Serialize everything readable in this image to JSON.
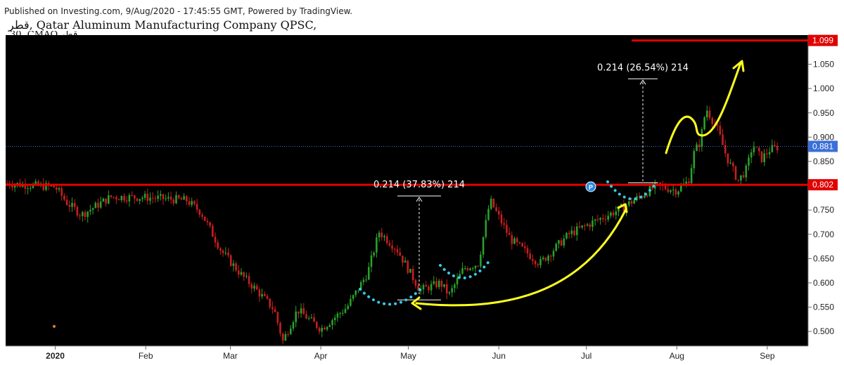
{
  "header": {
    "published": "Published on Investing.com, 9/Aug/2020 - 17:45:55 GMT, Powered by TradingView.",
    "title": "قطر, Qatar Aluminum Manufacturing Company QPSC,",
    "timeframe": "30, CMAQ قطر"
  },
  "colors": {
    "background": "#000000",
    "candle_up": "#2aa02a",
    "candle_down": "#c81e1e",
    "support_line": "#e00000",
    "current_price_line": "#3b6fd8",
    "arrow": "#ffff1e",
    "dots": "#38c8e0"
  },
  "chart_data": {
    "type": "candlestick",
    "x_tick_labels": [
      "2020",
      "Feb",
      "Mar",
      "Apr",
      "May",
      "Jun",
      "Jul",
      "Aug",
      "Sep"
    ],
    "y_tick_labels": [
      "0.500",
      "0.550",
      "0.600",
      "0.650",
      "0.700",
      "0.750",
      "0.800",
      "0.850",
      "0.900",
      "0.950",
      "1.000",
      "1.050"
    ],
    "ylim": [
      0.47,
      1.11
    ],
    "price_tags": [
      {
        "value": 1.099,
        "label": "1.099",
        "color": "#e00000"
      },
      {
        "value": 0.881,
        "label": "0.881",
        "color": "#3b6fd8"
      },
      {
        "value": 0.802,
        "label": "0.802",
        "color": "#e00000"
      }
    ],
    "annotations": [
      {
        "text": "0.214 (37.83%) 214",
        "from": 0.565,
        "to": 0.779
      },
      {
        "text": "0.214 (26.54%) 214",
        "from": 0.806,
        "to": 1.02
      }
    ],
    "marker_label": "P",
    "series": [
      {
        "date": "2019-12-15",
        "close": 0.805
      },
      {
        "date": "2020-01-01",
        "close": 0.797
      },
      {
        "date": "2020-01-05",
        "close": 0.765
      },
      {
        "date": "2020-01-10",
        "close": 0.74
      },
      {
        "date": "2020-01-20",
        "close": 0.777
      },
      {
        "date": "2020-02-01",
        "close": 0.776
      },
      {
        "date": "2020-02-15",
        "close": 0.77
      },
      {
        "date": "2020-02-20",
        "close": 0.745
      },
      {
        "date": "2020-02-27",
        "close": 0.665
      },
      {
        "date": "2020-03-05",
        "close": 0.615
      },
      {
        "date": "2020-03-10",
        "close": 0.585
      },
      {
        "date": "2020-03-16",
        "close": 0.545
      },
      {
        "date": "2020-03-19",
        "close": 0.48
      },
      {
        "date": "2020-03-24",
        "close": 0.545
      },
      {
        "date": "2020-04-01",
        "close": 0.505
      },
      {
        "date": "2020-04-10",
        "close": 0.55
      },
      {
        "date": "2020-04-17",
        "close": 0.62
      },
      {
        "date": "2020-04-21",
        "close": 0.705
      },
      {
        "date": "2020-04-27",
        "close": 0.67
      },
      {
        "date": "2020-05-05",
        "close": 0.585
      },
      {
        "date": "2020-05-12",
        "close": 0.6
      },
      {
        "date": "2020-05-15",
        "close": 0.575
      },
      {
        "date": "2020-05-20",
        "close": 0.63
      },
      {
        "date": "2020-05-25",
        "close": 0.64
      },
      {
        "date": "2020-05-29",
        "close": 0.77
      },
      {
        "date": "2020-06-05",
        "close": 0.69
      },
      {
        "date": "2020-06-15",
        "close": 0.64
      },
      {
        "date": "2020-06-25",
        "close": 0.7
      },
      {
        "date": "2020-07-05",
        "close": 0.73
      },
      {
        "date": "2020-07-12",
        "close": 0.75
      },
      {
        "date": "2020-07-20",
        "close": 0.78
      },
      {
        "date": "2020-07-25",
        "close": 0.8
      },
      {
        "date": "2020-08-01",
        "close": 0.79
      },
      {
        "date": "2020-08-05",
        "close": 0.81
      },
      {
        "date": "2020-08-07",
        "close": 0.87
      },
      {
        "date": "2020-08-09",
        "close": 0.89
      },
      {
        "date": "2020-08-11",
        "close": 0.96
      },
      {
        "date": "2020-08-15",
        "close": 0.915
      },
      {
        "date": "2020-08-18",
        "close": 0.86
      },
      {
        "date": "2020-08-22",
        "close": 0.81
      },
      {
        "date": "2020-08-25",
        "close": 0.835
      },
      {
        "date": "2020-08-27",
        "close": 0.885
      },
      {
        "date": "2020-08-30",
        "close": 0.855
      },
      {
        "date": "2020-09-02",
        "close": 0.875
      },
      {
        "date": "2020-09-05",
        "close": 0.88
      }
    ]
  }
}
